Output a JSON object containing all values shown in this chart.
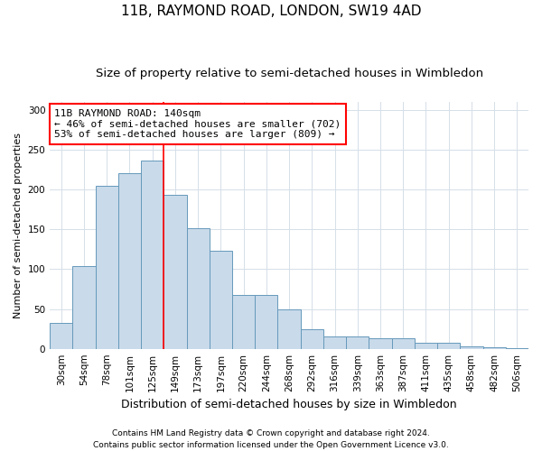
{
  "title": "11B, RAYMOND ROAD, LONDON, SW19 4AD",
  "subtitle": "Size of property relative to semi-detached houses in Wimbledon",
  "xlabel": "Distribution of semi-detached houses by size in Wimbledon",
  "ylabel": "Number of semi-detached properties",
  "categories": [
    "30sqm",
    "54sqm",
    "78sqm",
    "101sqm",
    "125sqm",
    "149sqm",
    "173sqm",
    "197sqm",
    "220sqm",
    "244sqm",
    "268sqm",
    "292sqm",
    "316sqm",
    "339sqm",
    "363sqm",
    "387sqm",
    "411sqm",
    "435sqm",
    "458sqm",
    "482sqm",
    "506sqm"
  ],
  "values": [
    32,
    104,
    205,
    220,
    236,
    193,
    151,
    123,
    67,
    67,
    49,
    25,
    15,
    15,
    13,
    13,
    7,
    7,
    3,
    2,
    1
  ],
  "bar_color": "#c9daea",
  "bar_edge_color": "#6699bb",
  "grid_color": "#d5dfe8",
  "annotation_line1": "11B RAYMOND ROAD: 140sqm",
  "annotation_line2": "← 46% of semi-detached houses are smaller (702)",
  "annotation_line3": "53% of semi-detached houses are larger (809) →",
  "annotation_box_color": "white",
  "annotation_box_edge_color": "red",
  "vline_x": 4.5,
  "vline_color": "red",
  "footer_line1": "Contains HM Land Registry data © Crown copyright and database right 2024.",
  "footer_line2": "Contains public sector information licensed under the Open Government Licence v3.0.",
  "ylim": [
    0,
    310
  ],
  "yticks": [
    0,
    50,
    100,
    150,
    200,
    250,
    300
  ],
  "title_fontsize": 11,
  "subtitle_fontsize": 9.5,
  "xlabel_fontsize": 9,
  "ylabel_fontsize": 8,
  "tick_fontsize": 7.5,
  "footer_fontsize": 6.5,
  "annotation_fontsize": 8
}
